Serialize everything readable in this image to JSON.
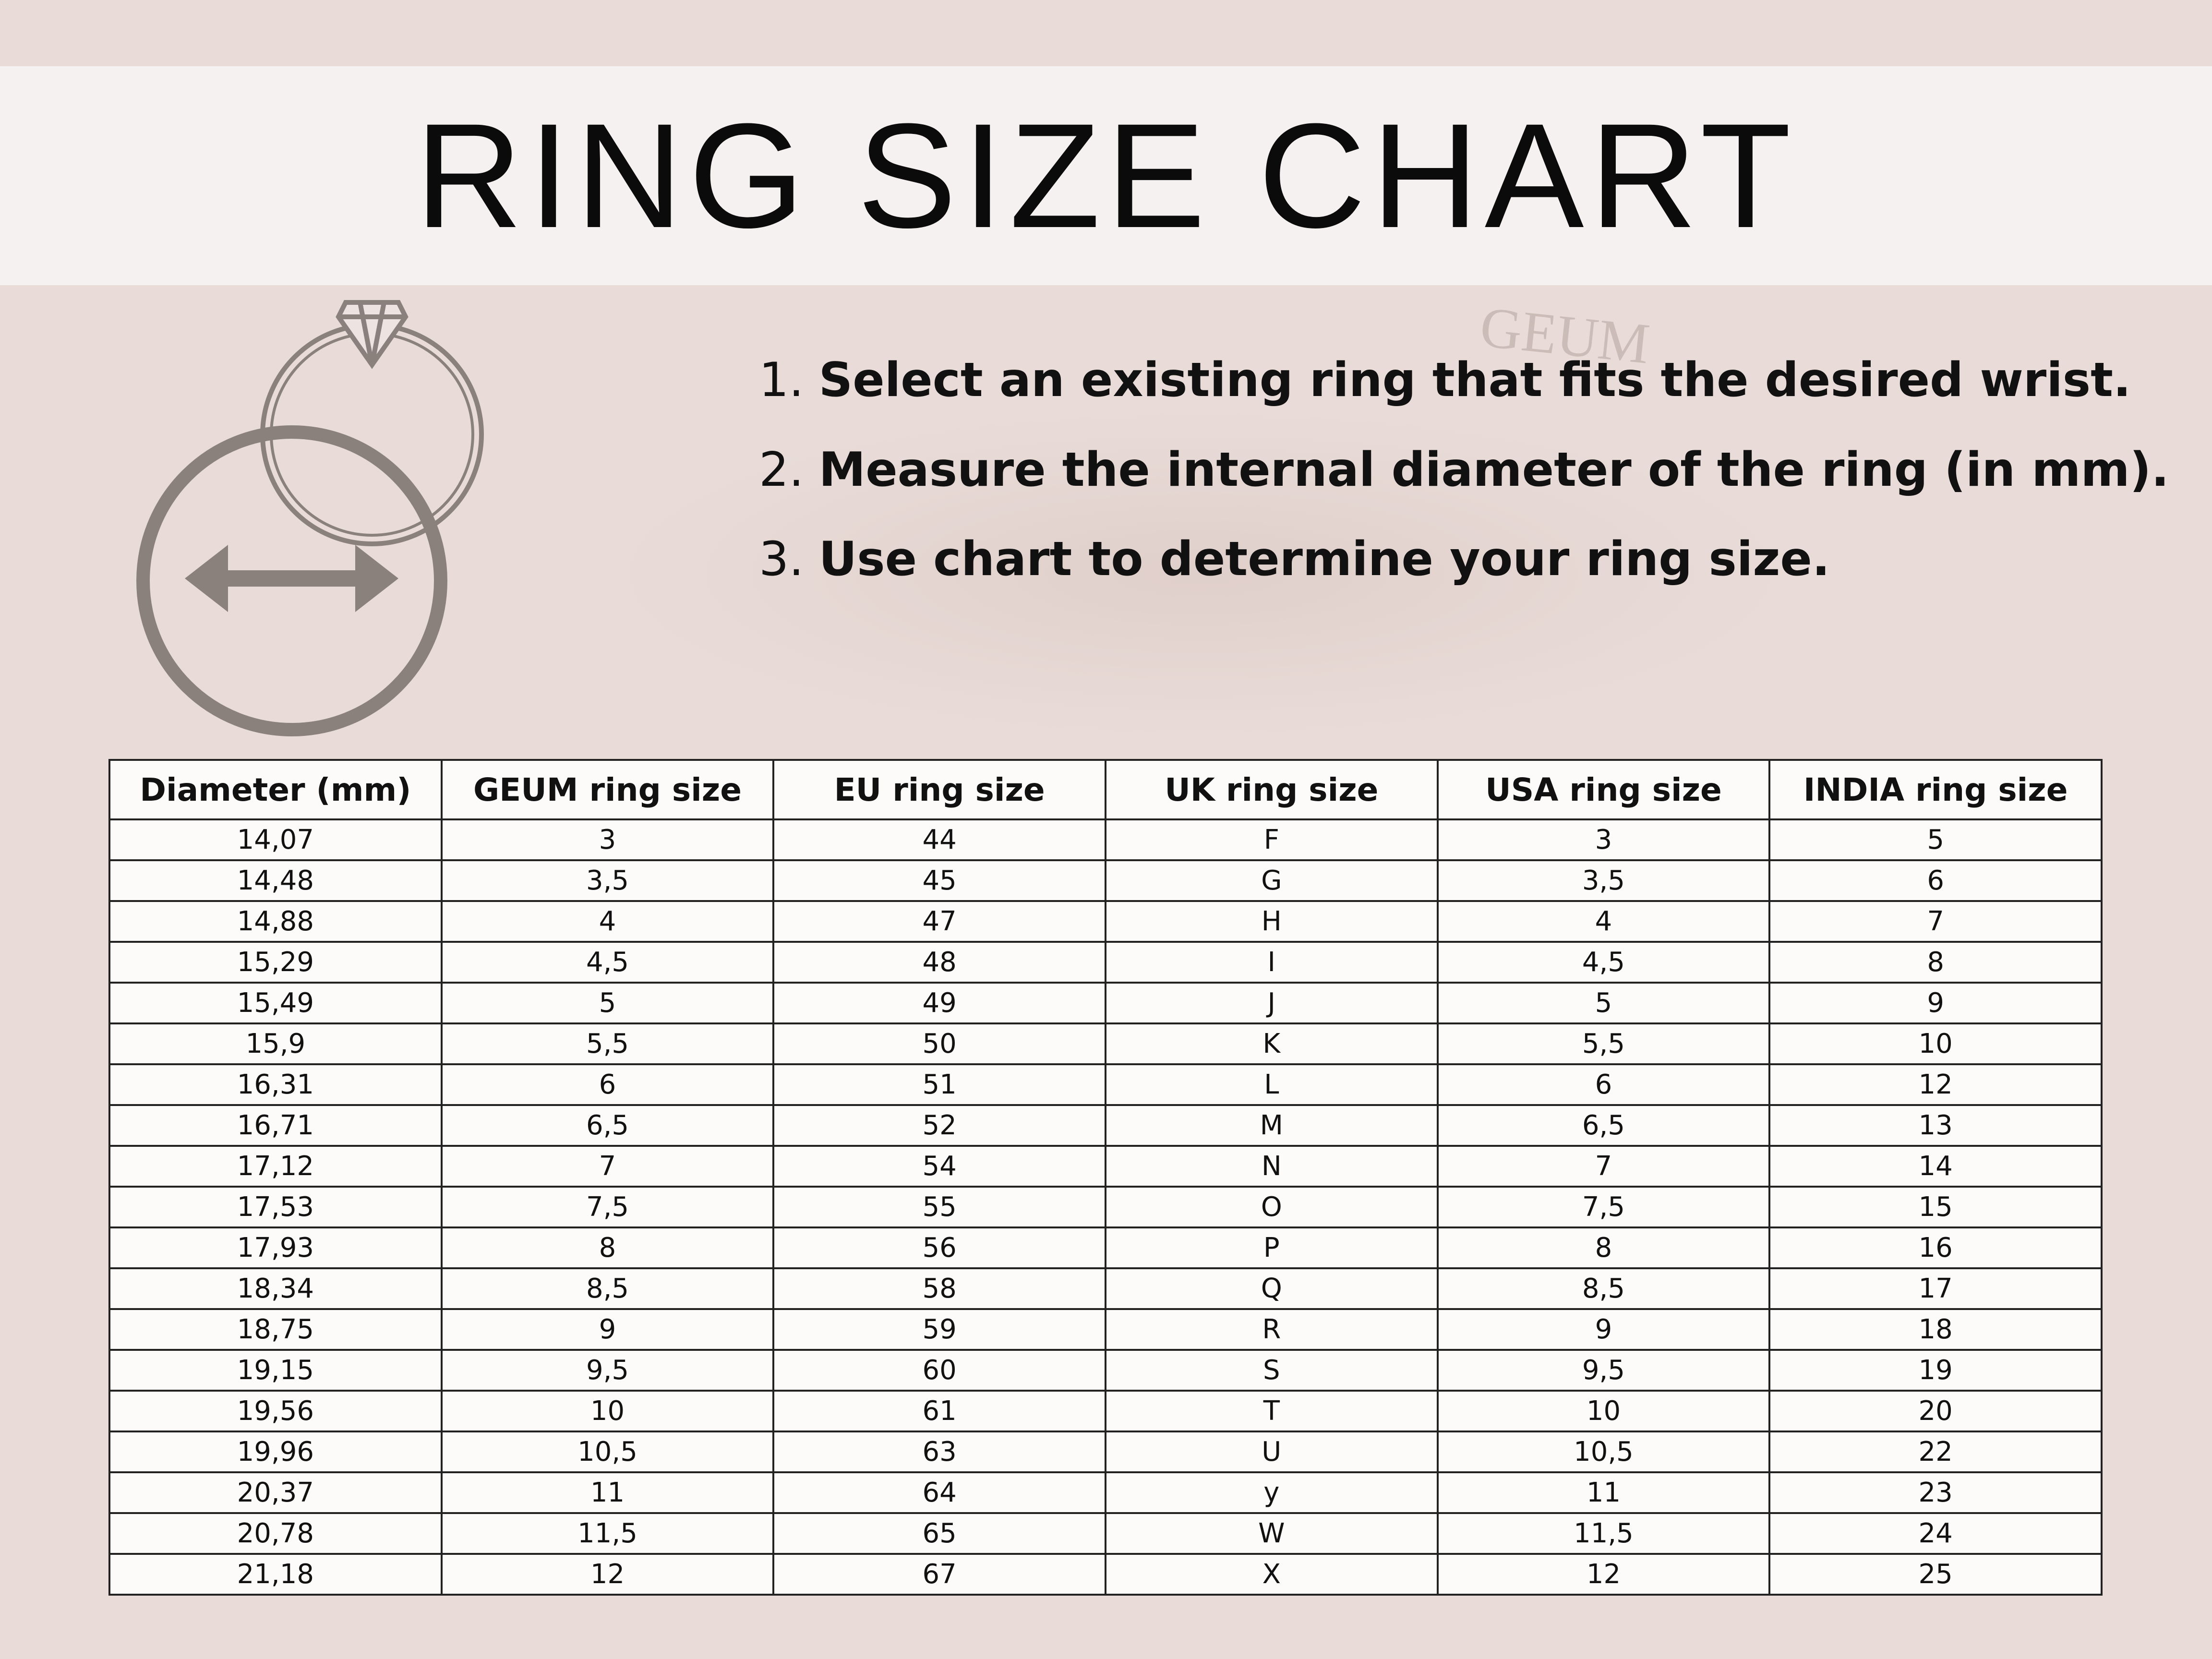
{
  "title": "RING SIZE CHART",
  "instructions": [
    {
      "num": "1.",
      "text": "Select an existing ring that fits the desired wrist."
    },
    {
      "num": "2.",
      "text": "Measure the internal diameter of the ring (in mm)."
    },
    {
      "num": "3.",
      "text": "Use chart to determine your ring size."
    }
  ],
  "background_watermark": "GEUM",
  "icons": [
    "diamond-ring-icon",
    "diameter-circle-arrow-icon"
  ],
  "colors": {
    "background": "#e9dcd8",
    "title_band": "#f5f1f0",
    "icon": "#8a807c",
    "table_bg": "#fdfafa"
  },
  "table": {
    "headers": [
      "Diameter  (mm)",
      "GEUM ring size",
      "EU ring size",
      "UK ring size",
      "USA ring size",
      "INDIA ring size"
    ],
    "rows": [
      [
        "14,07",
        "3",
        "44",
        "F",
        "3",
        "5"
      ],
      [
        "14,48",
        "3,5",
        "45",
        "G",
        "3,5",
        "6"
      ],
      [
        "14,88",
        "4",
        "47",
        "H",
        "4",
        "7"
      ],
      [
        "15,29",
        "4,5",
        "48",
        "I",
        "4,5",
        "8"
      ],
      [
        "15,49",
        "5",
        "49",
        "J",
        "5",
        "9"
      ],
      [
        "15,9",
        "5,5",
        "50",
        "K",
        "5,5",
        "10"
      ],
      [
        "16,31",
        "6",
        "51",
        "L",
        "6",
        "12"
      ],
      [
        "16,71",
        "6,5",
        "52",
        "M",
        "6,5",
        "13"
      ],
      [
        "17,12",
        "7",
        "54",
        "N",
        "7",
        "14"
      ],
      [
        "17,53",
        "7,5",
        "55",
        "O",
        "7,5",
        "15"
      ],
      [
        "17,93",
        "8",
        "56",
        "P",
        "8",
        "16"
      ],
      [
        "18,34",
        "8,5",
        "58",
        "Q",
        "8,5",
        "17"
      ],
      [
        "18,75",
        "9",
        "59",
        "R",
        "9",
        "18"
      ],
      [
        "19,15",
        "9,5",
        "60",
        "S",
        "9,5",
        "19"
      ],
      [
        "19,56",
        "10",
        "61",
        "T",
        "10",
        "20"
      ],
      [
        "19,96",
        "10,5",
        "63",
        "U",
        "10,5",
        "22"
      ],
      [
        "20,37",
        "11",
        "64",
        "y",
        "11",
        "23"
      ],
      [
        "20,78",
        "11,5",
        "65",
        "W",
        "11,5",
        "24"
      ],
      [
        "21,18",
        "12",
        "67",
        "X",
        "12",
        "25"
      ]
    ]
  }
}
